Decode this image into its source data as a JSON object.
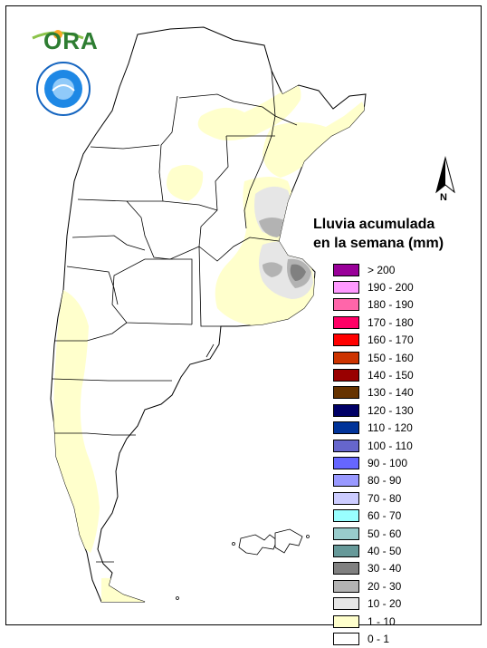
{
  "legend": {
    "title_line1": "Lluvia acumulada",
    "title_line2": "en la semana (mm)",
    "items": [
      {
        "label": "> 200",
        "color": "#990099"
      },
      {
        "label": "190 - 200",
        "color": "#ff99ff"
      },
      {
        "label": "180 - 190",
        "color": "#ff66aa"
      },
      {
        "label": "170 - 180",
        "color": "#ff0066"
      },
      {
        "label": "160 - 170",
        "color": "#ff0000"
      },
      {
        "label": "150 - 160",
        "color": "#cc3300"
      },
      {
        "label": "140 - 150",
        "color": "#990000"
      },
      {
        "label": "130 - 140",
        "color": "#663300"
      },
      {
        "label": "120 - 130",
        "color": "#000066"
      },
      {
        "label": "110 - 120",
        "color": "#003399"
      },
      {
        "label": "100 - 110",
        "color": "#6666cc"
      },
      {
        "label": "90 - 100",
        "color": "#6666ff"
      },
      {
        "label": "80 - 90",
        "color": "#9999ff"
      },
      {
        "label": "70 - 80",
        "color": "#ccccff"
      },
      {
        "label": "60 - 70",
        "color": "#99ffff"
      },
      {
        "label": "50 - 60",
        "color": "#99cccc"
      },
      {
        "label": "40 - 50",
        "color": "#669999"
      },
      {
        "label": "30 - 40",
        "color": "#808080"
      },
      {
        "label": "20 - 30",
        "color": "#b3b3b3"
      },
      {
        "label": "10 - 20",
        "color": "#e6e6e6"
      },
      {
        "label": "1 - 10",
        "color": "#ffffcc"
      },
      {
        "label": "0 - 1",
        "color": "#ffffff"
      }
    ]
  },
  "north_arrow": {
    "label": "N"
  },
  "logos": {
    "ora_text": "ORA",
    "smn_name": "smn-seal"
  },
  "map": {
    "icons": [
      "argentina-map",
      "falkland-islands"
    ],
    "colors": {
      "land": "#ffffff",
      "border": "#000000",
      "light_rain": "#ffffcc",
      "light_gray": "#e6e6e6",
      "mid_gray": "#b3b3b3",
      "dark_gray": "#808080"
    }
  }
}
